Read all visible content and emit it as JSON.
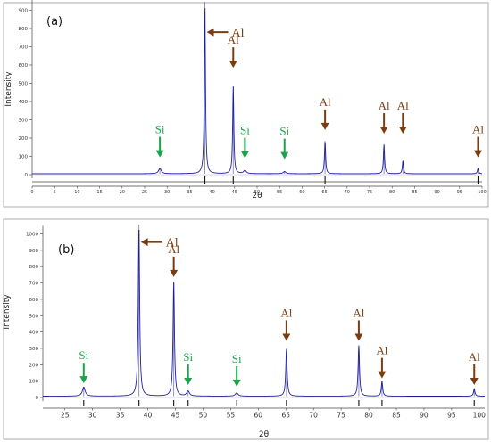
{
  "colors": {
    "trace": "#1f1f9e",
    "al_arrow": "#7a3d12",
    "si_arrow": "#1aa34a",
    "ref_marker": "#111111"
  },
  "chart_data": [
    {
      "type": "line",
      "panel_label": "(a)",
      "xlabel": "2θ",
      "ylabel": "Intensity",
      "xlim": [
        0,
        100
      ],
      "ylim": [
        -100,
        1000
      ],
      "xticks": [
        0,
        5,
        10,
        15,
        20,
        25,
        30,
        35,
        40,
        45,
        50,
        55,
        60,
        65,
        70,
        75,
        80,
        85,
        90,
        95,
        100
      ],
      "yticks": [
        0,
        100,
        200,
        300,
        400,
        500,
        600,
        700,
        800,
        900
      ],
      "baseline": 5,
      "peaks": [
        {
          "x": 28.4,
          "y": 30,
          "w": 0.35
        },
        {
          "x": 38.4,
          "y": 940,
          "w": 0.15
        },
        {
          "x": 44.7,
          "y": 480,
          "w": 0.15
        },
        {
          "x": 47.3,
          "y": 18,
          "w": 0.35
        },
        {
          "x": 56.1,
          "y": 12,
          "w": 0.35
        },
        {
          "x": 65.1,
          "y": 180,
          "w": 0.15
        },
        {
          "x": 78.2,
          "y": 160,
          "w": 0.15
        },
        {
          "x": 82.4,
          "y": 70,
          "w": 0.15
        },
        {
          "x": 99.1,
          "y": 30,
          "w": 0.15
        }
      ],
      "reference_markers": [
        38.4,
        44.7,
        65.1,
        99.1
      ],
      "annotations": [
        {
          "text": "Al",
          "x": 38.4,
          "y": 780,
          "phase": "al",
          "dir": "left"
        },
        {
          "text": "Al",
          "x": 44.7,
          "y": 570,
          "phase": "al",
          "dir": "down"
        },
        {
          "text": "Al",
          "x": 65.1,
          "y": 230,
          "phase": "al",
          "dir": "down"
        },
        {
          "text": "Al",
          "x": 78.2,
          "y": 210,
          "phase": "al",
          "dir": "down"
        },
        {
          "text": "Al",
          "x": 82.4,
          "y": 210,
          "phase": "al",
          "dir": "down"
        },
        {
          "text": "Al",
          "x": 99.1,
          "y": 80,
          "phase": "al",
          "dir": "down"
        },
        {
          "text": "Si",
          "x": 28.4,
          "y": 80,
          "phase": "si",
          "dir": "down"
        },
        {
          "text": "Si",
          "x": 47.3,
          "y": 75,
          "phase": "si",
          "dir": "down"
        },
        {
          "text": "Si",
          "x": 56.1,
          "y": 70,
          "phase": "si",
          "dir": "down"
        }
      ]
    },
    {
      "type": "line",
      "panel_label": "(b)",
      "xlabel": "2θ",
      "ylabel": "Intensity",
      "xlim": [
        21,
        101
      ],
      "ylim": [
        -100,
        1050
      ],
      "xticks": [
        25,
        30,
        35,
        40,
        45,
        50,
        55,
        60,
        65,
        70,
        75,
        80,
        85,
        90,
        95,
        100
      ],
      "yticks": [
        0,
        100,
        200,
        300,
        400,
        500,
        600,
        700,
        800,
        900,
        1000
      ],
      "baseline": 8,
      "peaks": [
        {
          "x": 28.4,
          "y": 55,
          "w": 0.3
        },
        {
          "x": 38.4,
          "y": 1050,
          "w": 0.15
        },
        {
          "x": 44.7,
          "y": 700,
          "w": 0.15
        },
        {
          "x": 47.3,
          "y": 30,
          "w": 0.3
        },
        {
          "x": 56.1,
          "y": 20,
          "w": 0.3
        },
        {
          "x": 65.1,
          "y": 290,
          "w": 0.15
        },
        {
          "x": 78.2,
          "y": 310,
          "w": 0.15
        },
        {
          "x": 82.4,
          "y": 90,
          "w": 0.15
        },
        {
          "x": 99.1,
          "y": 45,
          "w": 0.15
        }
      ],
      "reference_markers": [
        28.4,
        38.4,
        44.7,
        47.3,
        56.1,
        65.1,
        78.2,
        82.4,
        99.1
      ],
      "annotations": [
        {
          "text": "Al",
          "x": 38.4,
          "y": 950,
          "phase": "al",
          "dir": "left"
        },
        {
          "text": "Al",
          "x": 44.7,
          "y": 720,
          "phase": "al",
          "dir": "down"
        },
        {
          "text": "Al",
          "x": 65.1,
          "y": 330,
          "phase": "al",
          "dir": "down"
        },
        {
          "text": "Al",
          "x": 78.2,
          "y": 330,
          "phase": "al",
          "dir": "down"
        },
        {
          "text": "Al",
          "x": 82.4,
          "y": 100,
          "phase": "al",
          "dir": "down"
        },
        {
          "text": "Al",
          "x": 99.1,
          "y": 60,
          "phase": "al",
          "dir": "down"
        },
        {
          "text": "Si",
          "x": 28.4,
          "y": 70,
          "phase": "si",
          "dir": "down"
        },
        {
          "text": "Si",
          "x": 47.3,
          "y": 60,
          "phase": "si",
          "dir": "down"
        },
        {
          "text": "Si",
          "x": 56.1,
          "y": 50,
          "phase": "si",
          "dir": "down"
        }
      ]
    }
  ]
}
